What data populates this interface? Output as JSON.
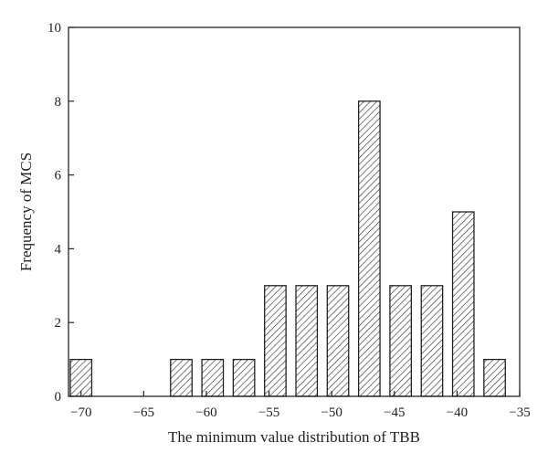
{
  "chart_data": {
    "type": "bar",
    "xlabel": "The minimum value distribution of TBB",
    "ylabel": "Frequency of MCS",
    "xlim": [
      -71,
      -35
    ],
    "ylim": [
      0,
      10
    ],
    "x_ticks": [
      -70,
      -65,
      -60,
      -55,
      -50,
      -45,
      -40,
      -35
    ],
    "y_ticks": [
      0,
      2,
      4,
      6,
      8,
      10
    ],
    "bar_width": 2,
    "bar_fill": "hatched",
    "x": [
      -70,
      -62,
      -59.5,
      -57,
      -54.5,
      -52,
      -49.5,
      -47,
      -44.5,
      -42,
      -39.5,
      -37
    ],
    "values": [
      1,
      1,
      1,
      1,
      3,
      3,
      3,
      8,
      3,
      3,
      5,
      1
    ],
    "grid": false,
    "legend": "none"
  },
  "colors": {
    "axis": "#222222",
    "bar_stroke": "#222222",
    "hatch": "#333333",
    "background": "#ffffff"
  }
}
